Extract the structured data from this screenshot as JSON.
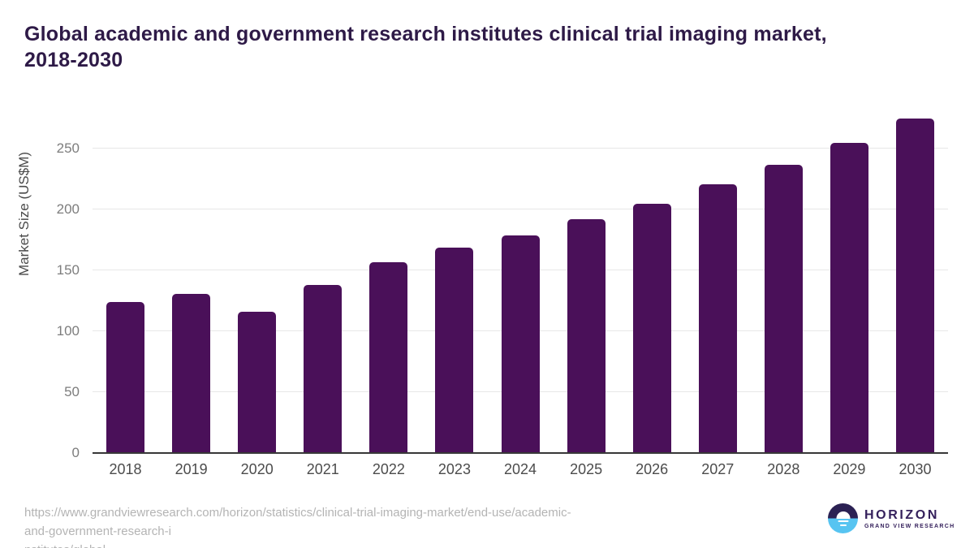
{
  "page": {
    "title_lines": [
      "Global academic and government research institutes clinical trial imaging market,",
      "2018-2030"
    ]
  },
  "chart_data": {
    "type": "bar",
    "title": "Global academic and government research institutes clinical trial imaging market, 2018-2030",
    "categories": [
      "2018",
      "2019",
      "2020",
      "2021",
      "2022",
      "2023",
      "2024",
      "2025",
      "2026",
      "2027",
      "2028",
      "2029",
      "2030"
    ],
    "values": [
      124,
      131,
      116,
      138,
      157,
      169,
      179,
      192,
      205,
      221,
      237,
      255,
      275
    ],
    "xlabel": "",
    "ylabel": "Market Size (US$M)",
    "yticks": [
      0,
      50,
      100,
      150,
      200,
      250
    ],
    "ylim": [
      0,
      280
    ],
    "grid": "horizontal",
    "legend": "none",
    "bar_color": "#4a1059"
  },
  "footer": {
    "source_url_lines": [
      "https://www.grandviewresearch.com/horizon/statistics/clinical-trial-imaging-market/end-use/academic-and-government-research-i",
      "nstitutes/global"
    ],
    "logo": {
      "brand": "HORIZON",
      "sub_brand": "GRAND VIEW RESEARCH"
    }
  },
  "colors": {
    "bar": "#4a1059",
    "title_text": "#2e1a47",
    "axis_line": "#383838",
    "gridline": "#e7e7e7",
    "tick_text": "#7d7d7d",
    "x_label_text": "#4c4c4c",
    "url_text": "#b4b4b4",
    "logo_dark": "#2b2153",
    "logo_blue": "#57c4f1",
    "logo_text": "#35215c"
  }
}
